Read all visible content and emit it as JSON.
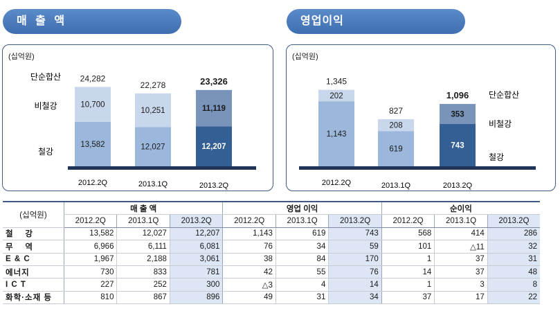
{
  "sections": {
    "sales_title": "매 출 액",
    "op_title": "영업이익",
    "unit_label": "(십억원)"
  },
  "chart_data": [
    {
      "type": "bar",
      "title": "매 출 액",
      "stacked": true,
      "categories": [
        "2012.2Q",
        "2013.1Q",
        "2013.2Q"
      ],
      "series": [
        {
          "name": "철강",
          "values": [
            13582,
            12027,
            12207
          ]
        },
        {
          "name": "비철강",
          "values": [
            10700,
            10251,
            11119
          ]
        }
      ],
      "totals": [
        "24,282",
        "22,278",
        "23,326"
      ],
      "segment_labels": {
        "철강": [
          "13,582",
          "12,027",
          "12,207"
        ],
        "비철강": [
          "10,700",
          "10,251",
          "11,119"
        ]
      },
      "total_series_name": "단순합산",
      "legend_position": "left",
      "ylim": [
        0,
        25000
      ],
      "colors": {
        "steel": [
          "#9bb8dc",
          "#9bb8dc",
          "#335f95"
        ],
        "nonsteel": [
          "#c8d7ec",
          "#c8d7ec",
          "#7894ba"
        ]
      }
    },
    {
      "type": "bar",
      "title": "영업이익",
      "stacked": true,
      "categories": [
        "2012.2Q",
        "2013.1Q",
        "2013.2Q"
      ],
      "series": [
        {
          "name": "철강",
          "values": [
            1143,
            619,
            743
          ]
        },
        {
          "name": "비철강",
          "values": [
            202,
            208,
            353
          ]
        }
      ],
      "totals": [
        "1,345",
        "827",
        "1,096"
      ],
      "segment_labels": {
        "철강": [
          "1,143",
          "619",
          "743"
        ],
        "비철강": [
          "202",
          "208",
          "353"
        ]
      },
      "total_series_name": "단순합산",
      "legend_position": "right",
      "ylim": [
        0,
        1450
      ],
      "colors": {
        "steel": [
          "#9bb8dc",
          "#9bb8dc",
          "#335f95"
        ],
        "nonsteel": [
          "#c8d7ec",
          "#c8d7ec",
          "#7894ba"
        ]
      }
    }
  ],
  "table": {
    "unit": "(십억원)",
    "groups": [
      "매 출 액",
      "영업 이익",
      "순이익"
    ],
    "periods": [
      "2012.2Q",
      "2013.1Q",
      "2013.2Q"
    ],
    "rows": [
      {
        "label": "철    강",
        "values": [
          "13,582",
          "12,027",
          "12,207",
          "1,143",
          "619",
          "743",
          "568",
          "414",
          "286"
        ]
      },
      {
        "label": "무    역",
        "values": [
          "6,966",
          "6,111",
          "6,081",
          "76",
          "34",
          "59",
          "101",
          "△11",
          "32"
        ]
      },
      {
        "label": "E & C",
        "values": [
          "1,967",
          "2,188",
          "3,061",
          "38",
          "84",
          "170",
          "1",
          "37",
          "31"
        ]
      },
      {
        "label": "에너지",
        "values": [
          "730",
          "833",
          "781",
          "42",
          "55",
          "76",
          "14",
          "37",
          "48"
        ]
      },
      {
        "label": "I C T",
        "values": [
          "227",
          "252",
          "300",
          "△3",
          "4",
          "14",
          "1",
          "3",
          "8"
        ]
      },
      {
        "label": "화학·소재 등",
        "values": [
          "810",
          "867",
          "896",
          "49",
          "31",
          "34",
          "37",
          "17",
          "22"
        ]
      }
    ]
  }
}
